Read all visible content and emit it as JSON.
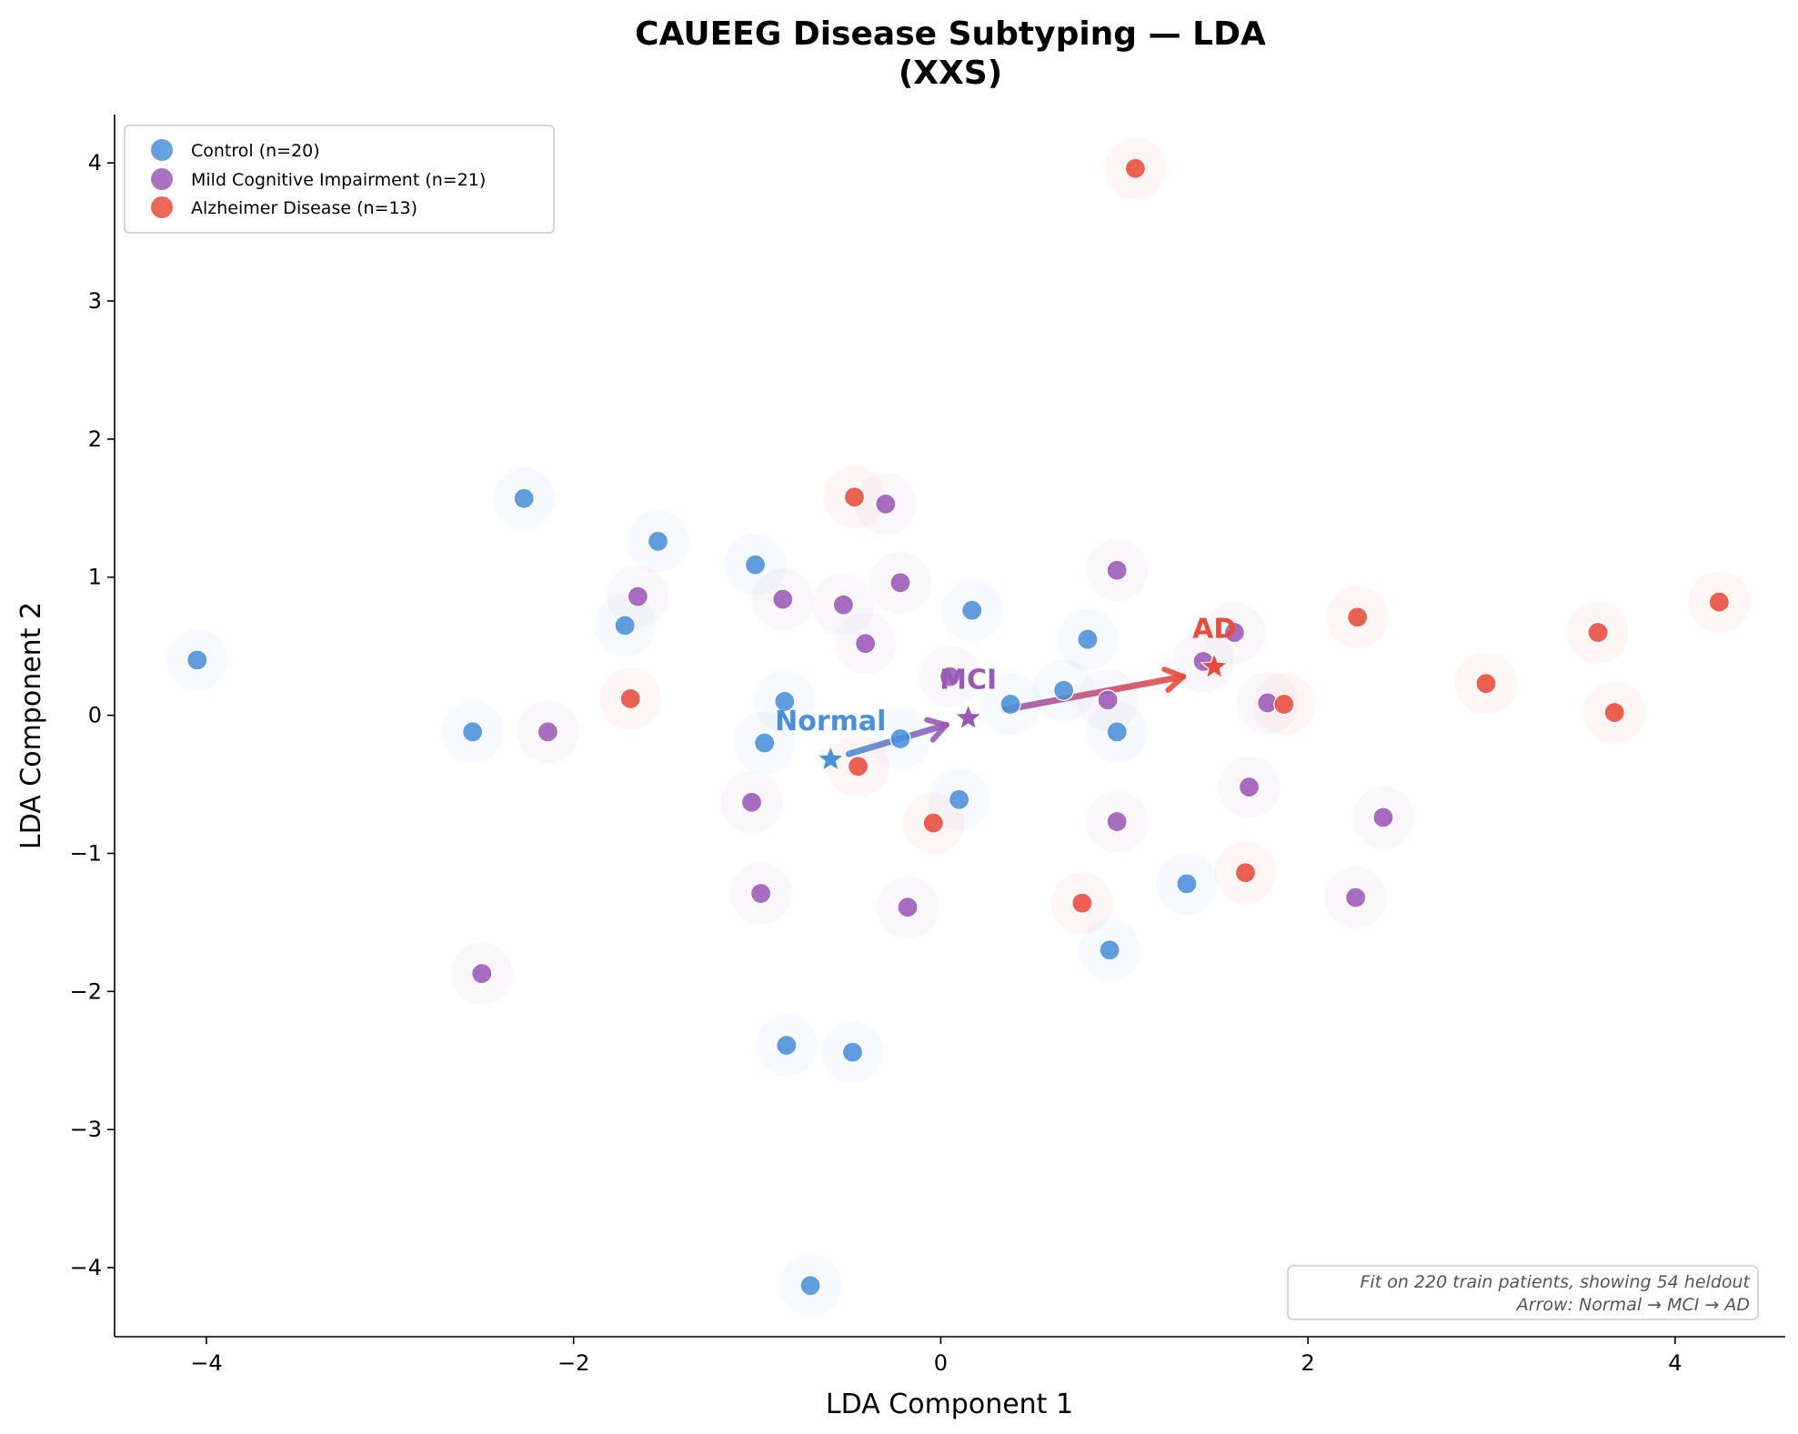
{
  "chart_data": {
    "type": "scatter",
    "title_line1": "CAUEEG Disease Subtyping — LDA",
    "title_line2": "(XXS)",
    "xlabel": "LDA Component 1",
    "ylabel": "LDA Component 2",
    "xlim": [
      -4.5,
      4.6
    ],
    "ylim": [
      -4.5,
      4.35
    ],
    "xticks": [
      -4,
      -2,
      0,
      2,
      4
    ],
    "yticks": [
      -4,
      -3,
      -2,
      -1,
      0,
      1,
      2,
      3,
      4
    ],
    "xtick_labels": [
      "−4",
      "−2",
      "0",
      "2",
      "4"
    ],
    "ytick_labels": [
      "−4",
      "−3",
      "−2",
      "−1",
      "0",
      "1",
      "2",
      "3",
      "4"
    ],
    "grid": false,
    "legend_position": "top-left",
    "series": [
      {
        "name": "Control (n=20)",
        "color": "#4a90d9",
        "points": [
          [
            -4.05,
            0.4
          ],
          [
            -2.27,
            1.57
          ],
          [
            -1.54,
            1.26
          ],
          [
            -1.72,
            0.65
          ],
          [
            -2.55,
            -0.12
          ],
          [
            -1.01,
            1.09
          ],
          [
            -0.85,
            0.1
          ],
          [
            -0.96,
            -0.2
          ],
          [
            0.17,
            0.76
          ],
          [
            -0.22,
            -0.17
          ],
          [
            0.1,
            -0.61
          ],
          [
            0.38,
            0.08
          ],
          [
            0.67,
            0.18
          ],
          [
            0.8,
            0.55
          ],
          [
            0.96,
            -0.12
          ],
          [
            1.34,
            -1.22
          ],
          [
            0.92,
            -1.7
          ],
          [
            -0.84,
            -2.39
          ],
          [
            -0.48,
            -2.44
          ],
          [
            -0.71,
            -4.13
          ]
        ]
      },
      {
        "name": "Mild Cognitive Impairment (n=21)",
        "color": "#9b59b6",
        "points": [
          [
            -1.65,
            0.86
          ],
          [
            -2.14,
            -0.12
          ],
          [
            -2.5,
            -1.87
          ],
          [
            -0.86,
            0.84
          ],
          [
            -0.53,
            0.8
          ],
          [
            -0.3,
            1.53
          ],
          [
            -0.41,
            0.52
          ],
          [
            -0.22,
            0.96
          ],
          [
            0.05,
            0.28
          ],
          [
            -1.03,
            -0.63
          ],
          [
            -0.98,
            -1.29
          ],
          [
            -0.18,
            -1.39
          ],
          [
            0.96,
            1.05
          ],
          [
            0.91,
            0.11
          ],
          [
            0.96,
            -0.77
          ],
          [
            1.43,
            0.39
          ],
          [
            1.6,
            0.6
          ],
          [
            1.78,
            0.09
          ],
          [
            1.68,
            -0.52
          ],
          [
            2.41,
            -0.74
          ],
          [
            2.26,
            -1.32
          ]
        ]
      },
      {
        "name": "Alzheimer Disease (n=13)",
        "color": "#e74c3c",
        "points": [
          [
            1.06,
            3.96
          ],
          [
            -0.47,
            1.58
          ],
          [
            -1.69,
            0.12
          ],
          [
            -0.45,
            -0.37
          ],
          [
            -0.04,
            -0.78
          ],
          [
            0.77,
            -1.36
          ],
          [
            1.66,
            -1.14
          ],
          [
            1.87,
            0.08
          ],
          [
            2.27,
            0.71
          ],
          [
            2.97,
            0.23
          ],
          [
            3.58,
            0.6
          ],
          [
            3.67,
            0.02
          ],
          [
            4.24,
            0.82
          ]
        ]
      }
    ],
    "centroids": [
      {
        "label": "Normal",
        "x": -0.6,
        "y": -0.32,
        "color": "#4a90d9"
      },
      {
        "label": "MCI",
        "x": 0.15,
        "y": -0.02,
        "color": "#9b59b6"
      },
      {
        "label": "AD",
        "x": 1.49,
        "y": 0.35,
        "color": "#e74c3c"
      }
    ],
    "arrows": [
      {
        "from": [
          -0.5,
          -0.28
        ],
        "to": [
          0.03,
          -0.07
        ],
        "color_start": "#4a90d9",
        "color_end": "#9b59b6"
      },
      {
        "from": [
          0.35,
          0.04
        ],
        "to": [
          1.32,
          0.28
        ],
        "color_start": "#9b59b6",
        "color_end": "#e74c3c"
      }
    ],
    "annotation_lines": [
      "Fit on 220 train patients, showing 54 heldout",
      "Arrow: Normal → MCI → AD"
    ]
  }
}
